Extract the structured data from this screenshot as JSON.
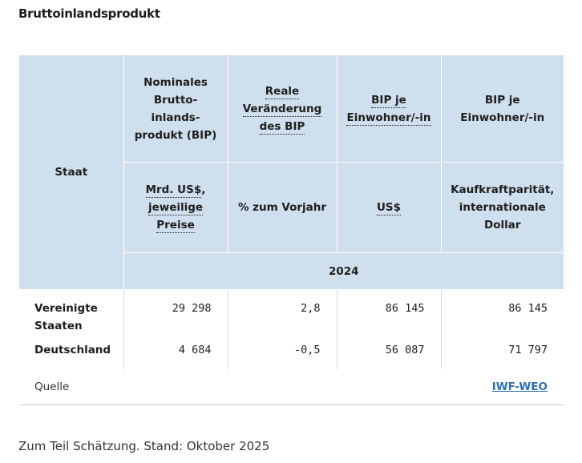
{
  "title": "Bruttoinlandsprodukt",
  "header": {
    "staat": "Staat",
    "col1_top": "Nominales Brutto­inlands­produkt (BIP)",
    "col2_top": "Reale Veränderung des BIP",
    "col3_top": "BIP je Einwohner/-in",
    "col4_top": "BIP je Einwohner/-in",
    "col1_unit_a": "Mrd. US$",
    "col1_unit_b": ", ",
    "col1_unit_c": "jeweilige Preise",
    "col2_unit": "% zum Vorjahr",
    "col3_unit": "US$",
    "col4_unit": "Kaufkraft­parität, internationale Dollar",
    "year": "2024"
  },
  "rows": [
    {
      "country": "Vereinigte Staaten",
      "bip": "29 298",
      "real": "2,8",
      "pro_kopf": "86 145",
      "kkp": "86 145"
    },
    {
      "country": "Deutschland",
      "bip": "4 684",
      "real": "-0,5",
      "pro_kopf": "56 087",
      "kkp": "71 797"
    }
  ],
  "source": {
    "label": "Quelle",
    "link": "IWF-WEO"
  },
  "note": "Zum Teil Schätzung. Stand: Oktober 2025"
}
